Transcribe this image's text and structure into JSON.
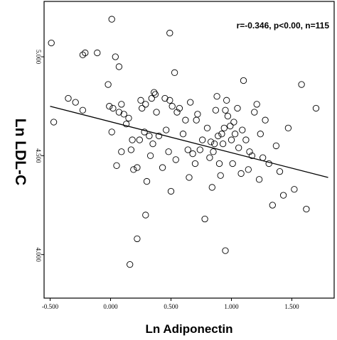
{
  "chart_data": {
    "type": "scatter",
    "xlabel": "Ln Adiponectin",
    "ylabel": "Ln LDL-C",
    "annotation": "r=-0.346, p<0.00, n=115",
    "xlim": [
      -0.55,
      1.85
    ],
    "ylim": [
      3.78,
      5.28
    ],
    "x_ticks": [
      -0.5,
      0.0,
      0.5,
      1.0,
      1.5
    ],
    "x_tick_labels": [
      "-0.500",
      "0.000",
      "0.500",
      "1.000",
      "1.500"
    ],
    "y_ticks": [
      4.0,
      4.5,
      5.0
    ],
    "y_tick_labels": [
      "4.000",
      "4.500",
      "5.000"
    ],
    "regression": {
      "x": [
        -0.5,
        1.8
      ],
      "y": [
        4.75,
        4.39
      ]
    },
    "grid": false,
    "marker": "hollow-circle",
    "points": [
      [
        -0.49,
        5.07
      ],
      [
        -0.47,
        4.67
      ],
      [
        -0.35,
        4.79
      ],
      [
        -0.29,
        4.77
      ],
      [
        -0.23,
        4.73
      ],
      [
        -0.23,
        5.01
      ],
      [
        -0.21,
        5.02
      ],
      [
        -0.11,
        5.02
      ],
      [
        -0.02,
        4.86
      ],
      [
        -0.01,
        4.75
      ],
      [
        0.01,
        4.62
      ],
      [
        0.01,
        5.19
      ],
      [
        0.02,
        4.74
      ],
      [
        0.04,
        5.0
      ],
      [
        0.05,
        4.45
      ],
      [
        0.07,
        4.95
      ],
      [
        0.07,
        4.72
      ],
      [
        0.09,
        4.52
      ],
      [
        0.09,
        4.76
      ],
      [
        0.11,
        4.71
      ],
      [
        0.13,
        4.66
      ],
      [
        0.15,
        4.69
      ],
      [
        0.17,
        4.53
      ],
      [
        0.18,
        4.58
      ],
      [
        0.19,
        4.43
      ],
      [
        0.22,
        4.44
      ],
      [
        0.24,
        4.58
      ],
      [
        0.25,
        4.78
      ],
      [
        0.26,
        4.74
      ],
      [
        0.28,
        4.62
      ],
      [
        0.29,
        4.76
      ],
      [
        0.29,
        4.2
      ],
      [
        0.3,
        4.37
      ],
      [
        0.32,
        4.6
      ],
      [
        0.33,
        4.5
      ],
      [
        0.34,
        4.79
      ],
      [
        0.35,
        4.56
      ],
      [
        0.37,
        4.81
      ],
      [
        0.38,
        4.72
      ],
      [
        0.4,
        4.6
      ],
      [
        0.43,
        4.44
      ],
      [
        0.45,
        4.79
      ],
      [
        0.46,
        4.63
      ],
      [
        0.48,
        4.52
      ],
      [
        0.49,
        4.78
      ],
      [
        0.5,
        4.32
      ],
      [
        0.51,
        4.75
      ],
      [
        0.53,
        4.92
      ],
      [
        0.54,
        4.48
      ],
      [
        0.55,
        4.72
      ],
      [
        0.57,
        4.74
      ],
      [
        0.6,
        4.61
      ],
      [
        0.62,
        4.68
      ],
      [
        0.64,
        4.53
      ],
      [
        0.65,
        4.39
      ],
      [
        0.66,
        4.77
      ],
      [
        0.68,
        4.51
      ],
      [
        0.7,
        4.46
      ],
      [
        0.71,
        4.68
      ],
      [
        0.72,
        4.71
      ],
      [
        0.74,
        4.53
      ],
      [
        0.76,
        4.58
      ],
      [
        0.78,
        4.18
      ],
      [
        0.8,
        4.64
      ],
      [
        0.82,
        4.49
      ],
      [
        0.83,
        4.57
      ],
      [
        0.84,
        4.34
      ],
      [
        0.85,
        4.52
      ],
      [
        0.86,
        4.56
      ],
      [
        0.87,
        4.73
      ],
      [
        0.88,
        4.8
      ],
      [
        0.89,
        4.6
      ],
      [
        0.9,
        4.46
      ],
      [
        0.91,
        4.4
      ],
      [
        0.92,
        4.61
      ],
      [
        0.93,
        4.56
      ],
      [
        0.94,
        4.64
      ],
      [
        0.95,
        4.73
      ],
      [
        0.96,
        4.78
      ],
      [
        0.97,
        4.7
      ],
      [
        0.99,
        4.65
      ],
      [
        1.0,
        4.58
      ],
      [
        1.01,
        4.46
      ],
      [
        1.02,
        4.67
      ],
      [
        1.03,
        4.61
      ],
      [
        1.05,
        4.74
      ],
      [
        1.06,
        4.54
      ],
      [
        1.08,
        4.41
      ],
      [
        1.09,
        4.63
      ],
      [
        1.1,
        4.88
      ],
      [
        1.12,
        4.58
      ],
      [
        1.14,
        4.43
      ],
      [
        1.15,
        4.52
      ],
      [
        1.17,
        4.5
      ],
      [
        1.19,
        4.72
      ],
      [
        1.21,
        4.76
      ],
      [
        1.23,
        4.38
      ],
      [
        1.24,
        4.61
      ],
      [
        1.26,
        4.49
      ],
      [
        1.28,
        4.68
      ],
      [
        1.31,
        4.46
      ],
      [
        1.34,
        4.25
      ],
      [
        1.37,
        4.55
      ],
      [
        1.4,
        4.42
      ],
      [
        1.43,
        4.3
      ],
      [
        1.47,
        4.64
      ],
      [
        1.52,
        4.33
      ],
      [
        1.58,
        4.86
      ],
      [
        1.62,
        4.23
      ],
      [
        1.7,
        4.74
      ],
      [
        0.16,
        3.95
      ],
      [
        0.49,
        5.12
      ],
      [
        0.22,
        4.08
      ],
      [
        0.95,
        4.02
      ],
      [
        0.36,
        4.82
      ]
    ]
  }
}
